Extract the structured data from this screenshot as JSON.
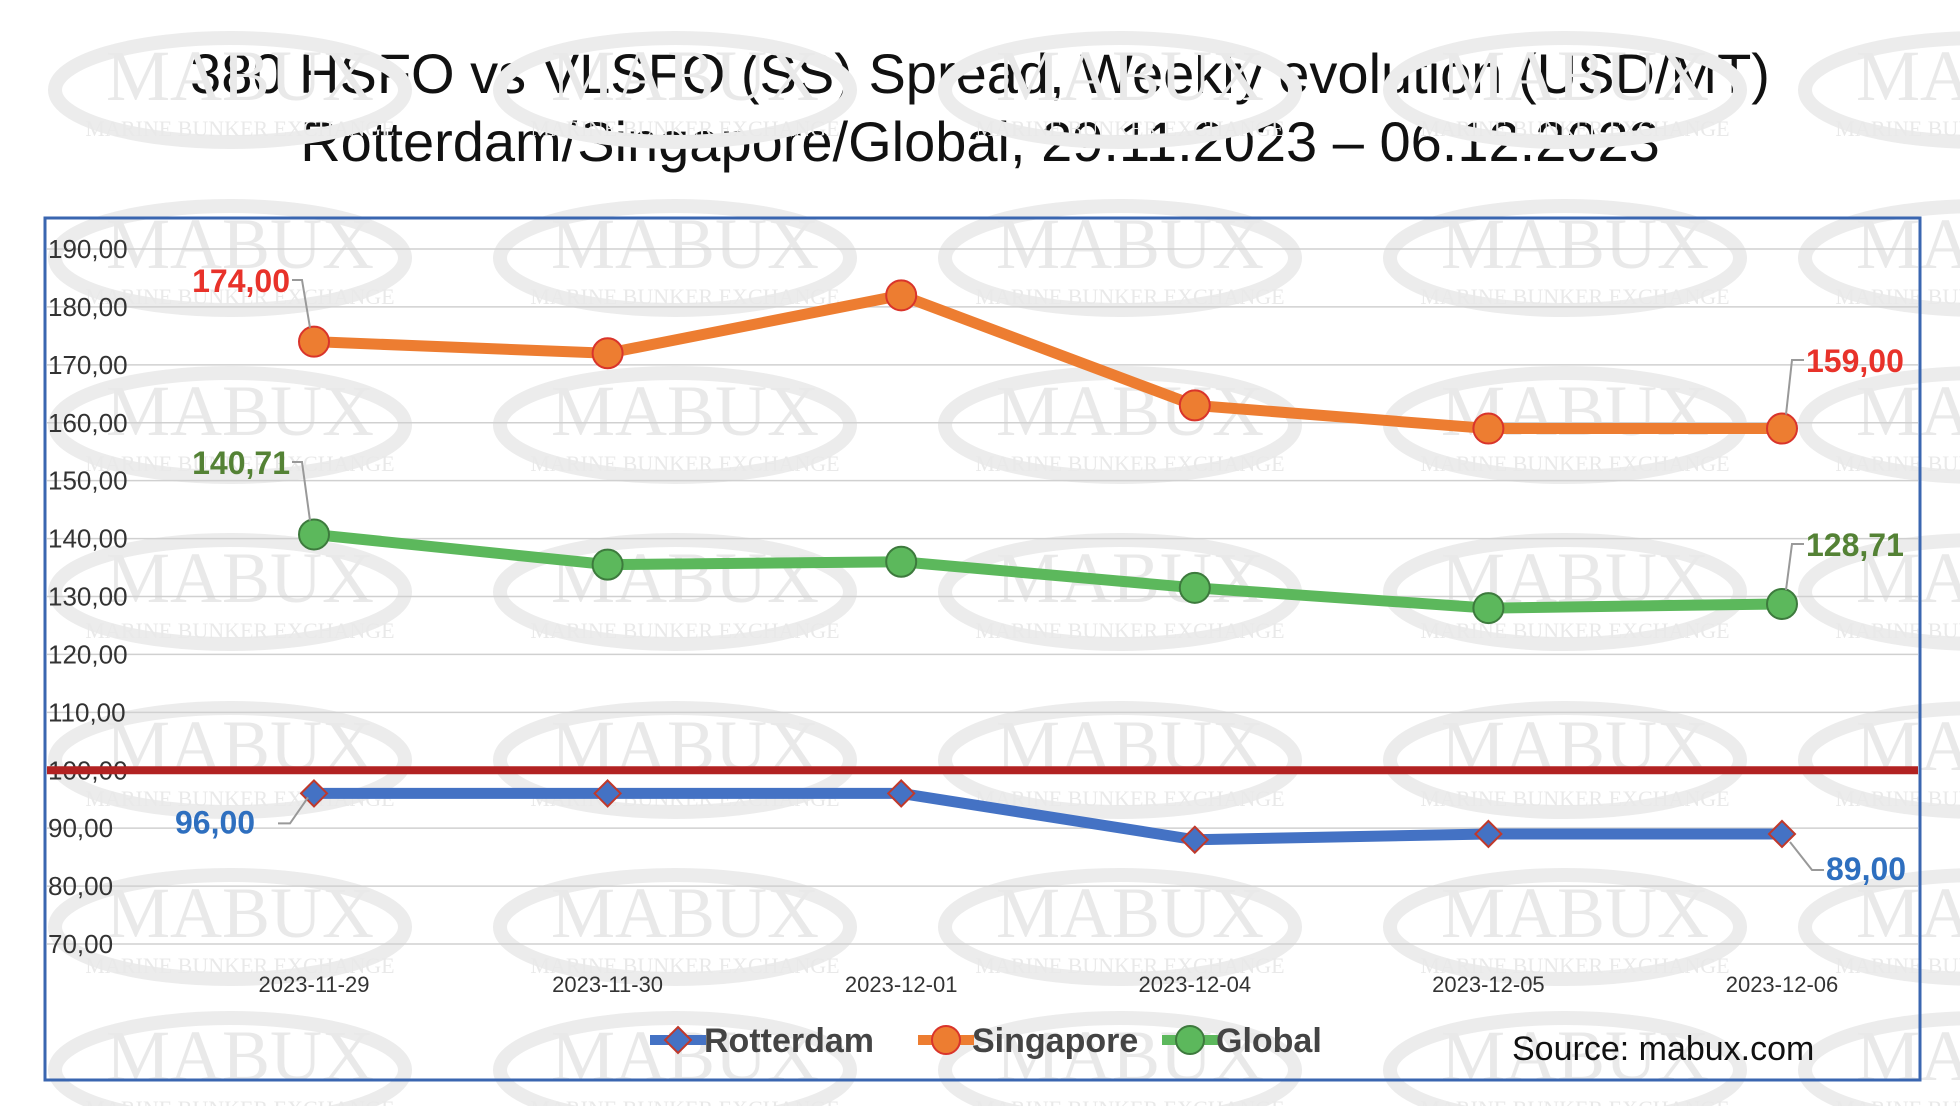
{
  "chart_data": {
    "type": "line",
    "title": "380 HSFO vs VLSFO (SS) Spread, Weekly evolution (USD/MT)",
    "subtitle": "Rotterdam/Singapore/Global, 29.11.2023 – 06.12.2023",
    "categories": [
      "2023-11-29",
      "2023-11-30",
      "2023-12-01",
      "2023-12-04",
      "2023-12-05",
      "2023-12-06"
    ],
    "ylim": [
      70,
      190
    ],
    "ytick_step": 10,
    "ytick_labels": [
      "70,00",
      "80,00",
      "90,00",
      "100,00",
      "110,00",
      "120,00",
      "130,00",
      "140,00",
      "150,00",
      "160,00",
      "170,00",
      "180,00",
      "190,00"
    ],
    "grid": true,
    "legend_position": "bottom",
    "reference_line": {
      "value": 100,
      "color": "#b22222"
    },
    "series": [
      {
        "name": "Rotterdam",
        "values": [
          96,
          96,
          96,
          88,
          89,
          89
        ],
        "color": "#4472c4",
        "marker": "diamond",
        "labels": [
          {
            "index": 0,
            "text": "96,00"
          },
          {
            "index": 5,
            "text": "89,00"
          }
        ],
        "label_color": "#2e6fbf"
      },
      {
        "name": "Singapore",
        "values": [
          174,
          172,
          182,
          163,
          159,
          159
        ],
        "color": "#ed7d31",
        "marker": "circle",
        "labels": [
          {
            "index": 0,
            "text": "174,00"
          },
          {
            "index": 5,
            "text": "159,00"
          }
        ],
        "label_color": "#e8322a"
      },
      {
        "name": "Global",
        "values": [
          140.71,
          135.5,
          136,
          131.5,
          128,
          128.71
        ],
        "color": "#5cb85c",
        "marker": "circle",
        "labels": [
          {
            "index": 0,
            "text": "140,71"
          },
          {
            "index": 5,
            "text": "128,71"
          }
        ],
        "label_color": "#548235"
      }
    ]
  },
  "source": "Source: mabux.com",
  "watermark": {
    "brand": "MABUX",
    "tagline": "MARINE BUNKER EXCHANGE"
  }
}
